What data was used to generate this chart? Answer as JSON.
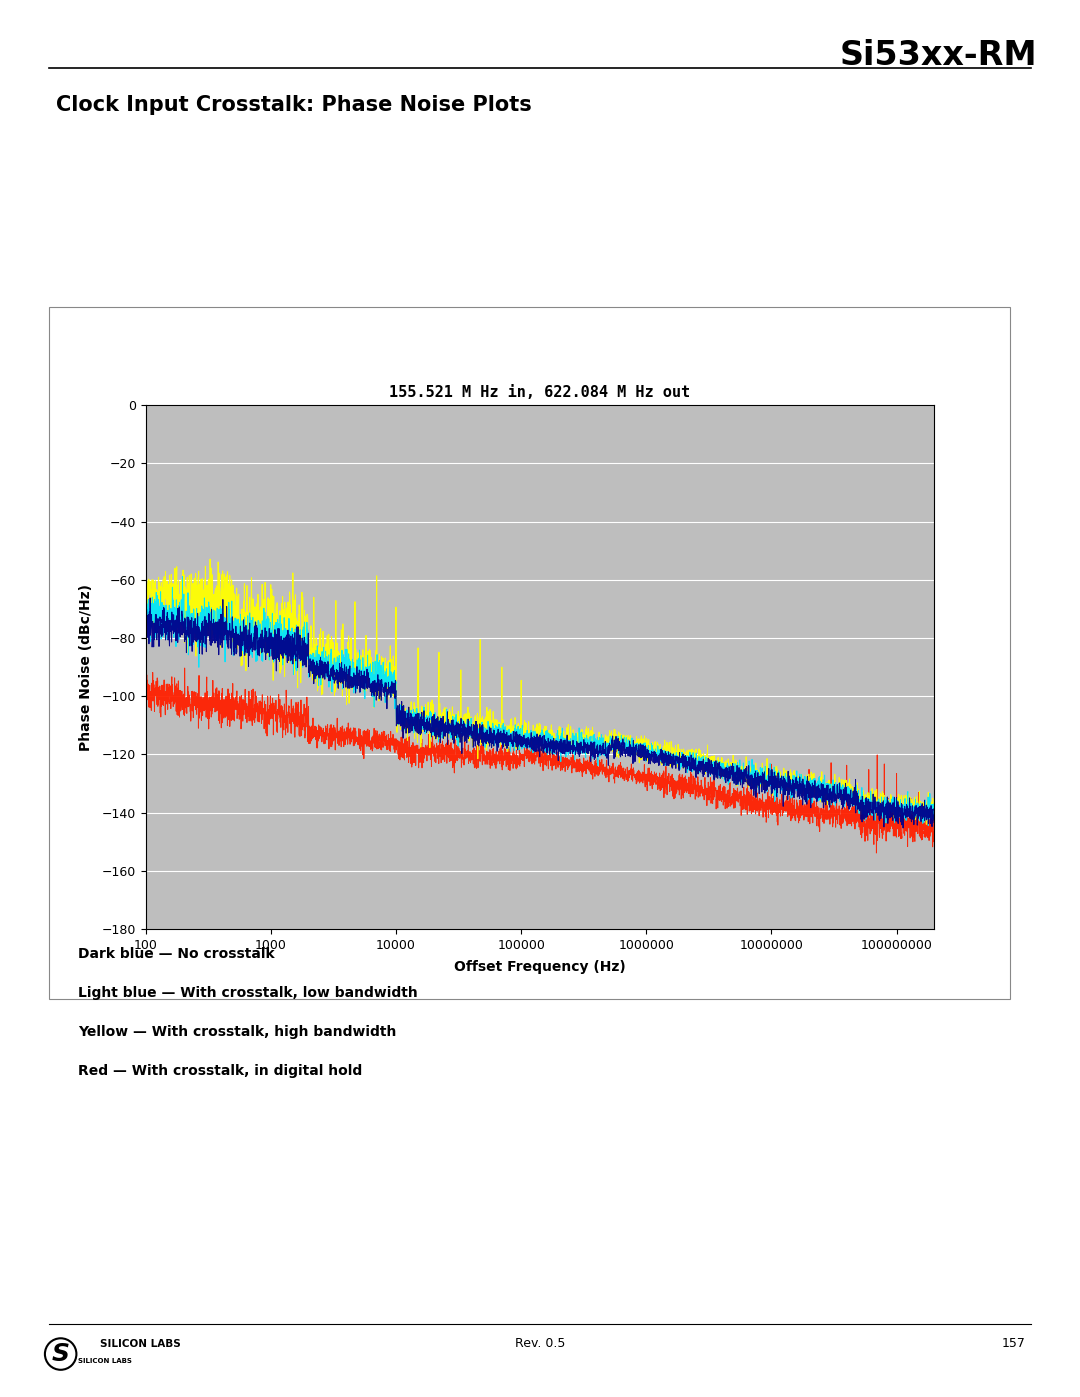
{
  "title": "Si53xx-RM",
  "section_title": "Clock Input Crosstalk: Phase Noise Plots",
  "plot_title": "155.521 M Hz in, 622.084 M Hz out",
  "xlabel": "Offset Frequency (Hz)",
  "ylabel": "Phase Noise (dBc/Hz)",
  "ylim": [
    -180,
    0
  ],
  "xlim_log": [
    100,
    200000000
  ],
  "yticks": [
    0,
    -20,
    -40,
    -60,
    -80,
    -100,
    -120,
    -140,
    -160,
    -180
  ],
  "xtick_labels": [
    "100",
    "1000",
    "10000",
    "100000",
    "1000000",
    "10000000",
    "100000000"
  ],
  "xtick_values": [
    100,
    1000,
    10000,
    100000,
    1000000,
    10000000,
    100000000
  ],
  "plot_bg": "#bebebe",
  "outer_bg": "#ffffff",
  "legend_lines": [
    "Dark blue — No crosstalk",
    "Light blue — With crosstalk, low bandwidth",
    "Yellow — With crosstalk, high bandwidth",
    "Red — With crosstalk, in digital hold"
  ],
  "footer_rev": "Rev. 0.5",
  "footer_page": "157"
}
